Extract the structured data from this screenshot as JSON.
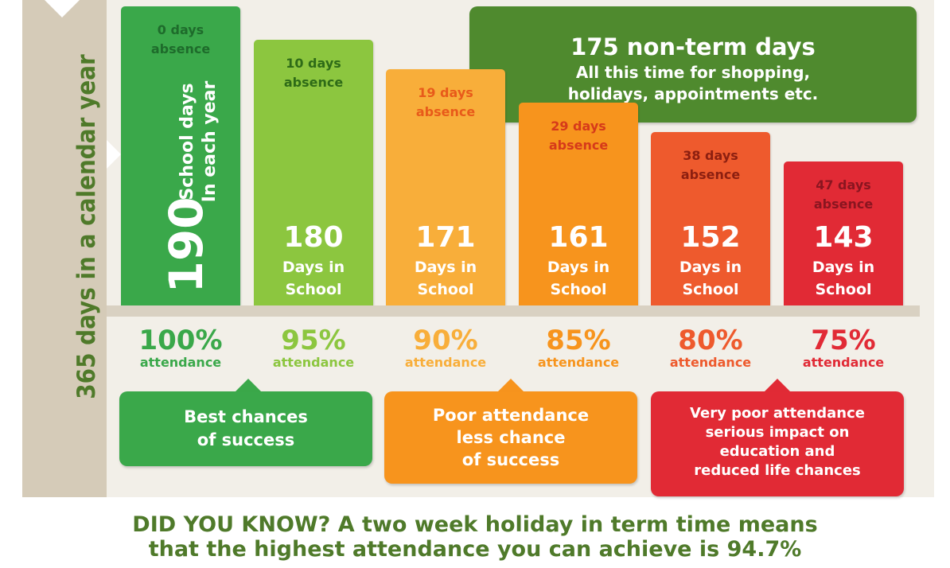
{
  "side_label": "365 days in a calendar year",
  "colors": {
    "green_dark": "#3aa84a",
    "green_light": "#8cc63f",
    "orange_light": "#f8ae3a",
    "orange": "#f7941d",
    "orange_red": "#ee5a2d",
    "red": "#e12a35",
    "olive": "#4f8a2e",
    "text_green": "#4f7a2a"
  },
  "nonterm": {
    "title": "175 non-term days",
    "line1": "All this time for shopping,",
    "line2": "holidays, appointments etc."
  },
  "chart_data": {
    "type": "bar",
    "categories": [
      "100% attendance",
      "95% attendance",
      "90% attendance",
      "85% attendance",
      "80% attendance",
      "75% attendance"
    ],
    "values": [
      190,
      180,
      171,
      161,
      152,
      143
    ],
    "absence": [
      0,
      10,
      19,
      29,
      38,
      47
    ],
    "ylim": [
      0,
      190
    ],
    "bars": [
      {
        "absence_line1": "0 days",
        "absence_line2": "absence",
        "days": "190",
        "label1": "School days",
        "label2": "In each year",
        "pct": "100%",
        "pct_label": "attendance"
      },
      {
        "absence_line1": "10 days",
        "absence_line2": "absence",
        "days": "180",
        "label1": "Days in",
        "label2": "School",
        "pct": "95%",
        "pct_label": "attendance"
      },
      {
        "absence_line1": "19 days",
        "absence_line2": "absence",
        "days": "171",
        "label1": "Days in",
        "label2": "School",
        "pct": "90%",
        "pct_label": "attendance"
      },
      {
        "absence_line1": "29 days",
        "absence_line2": "absence",
        "days": "161",
        "label1": "Days in",
        "label2": "School",
        "pct": "85%",
        "pct_label": "attendance"
      },
      {
        "absence_line1": "38 days",
        "absence_line2": "absence",
        "days": "152",
        "label1": "Days in",
        "label2": "School",
        "pct": "80%",
        "pct_label": "attendance"
      },
      {
        "absence_line1": "47 days",
        "absence_line2": "absence",
        "days": "143",
        "label1": "Days in",
        "label2": "School",
        "pct": "75%",
        "pct_label": "attendance"
      }
    ]
  },
  "notes": [
    {
      "line1": "Best chances",
      "line2": "of success"
    },
    {
      "line1": "Poor attendance",
      "line2": "less chance",
      "line3": "of success"
    },
    {
      "line1": "Very poor attendance",
      "line2": "serious impact on",
      "line3": "education and",
      "line4": "reduced life chances"
    }
  ],
  "footer": {
    "line1": "DID YOU KNOW? A two week holiday in term time means",
    "line2": "that the highest attendance you can achieve is 94.7%"
  }
}
